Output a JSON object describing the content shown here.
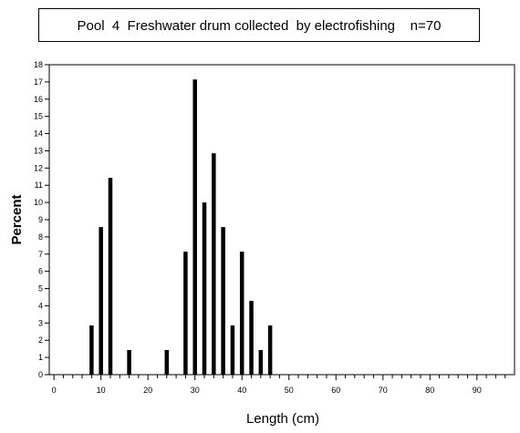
{
  "chart_data": {
    "type": "bar",
    "title": "Pool  4  Freshwater drum collected  by electrofishing    n=70",
    "xlabel": "Length (cm)",
    "ylabel": "Percent",
    "xlim": [
      -1,
      98
    ],
    "ylim": [
      0,
      18
    ],
    "x_ticks": [
      0,
      10,
      20,
      30,
      40,
      50,
      60,
      70,
      80,
      90
    ],
    "y_ticks": [
      0,
      1,
      2,
      3,
      4,
      5,
      6,
      7,
      8,
      9,
      10,
      11,
      12,
      13,
      14,
      15,
      16,
      17,
      18
    ],
    "grid": false,
    "bar_color": "#000000",
    "points": [
      {
        "x": 8,
        "y": 2.857
      },
      {
        "x": 10,
        "y": 8.571
      },
      {
        "x": 12,
        "y": 11.429
      },
      {
        "x": 16,
        "y": 1.429
      },
      {
        "x": 24,
        "y": 1.429
      },
      {
        "x": 28,
        "y": 7.143
      },
      {
        "x": 30,
        "y": 17.143
      },
      {
        "x": 32,
        "y": 10.0
      },
      {
        "x": 34,
        "y": 12.857
      },
      {
        "x": 36,
        "y": 8.571
      },
      {
        "x": 38,
        "y": 2.857
      },
      {
        "x": 40,
        "y": 7.143
      },
      {
        "x": 42,
        "y": 4.286
      },
      {
        "x": 44,
        "y": 1.429
      },
      {
        "x": 46,
        "y": 2.857
      }
    ]
  }
}
